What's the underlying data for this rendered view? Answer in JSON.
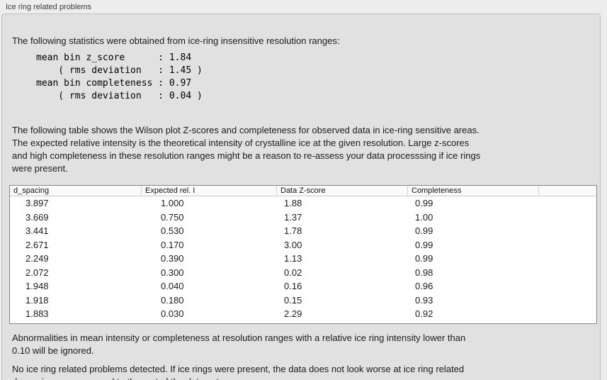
{
  "panel": {
    "title": "Ice ring related problems"
  },
  "intro": {
    "text": "The following statistics were obtained from ice-ring insensitive resolution ranges:"
  },
  "stats_block": {
    "text": "mean bin z_score      : 1.84\n    ( rms deviation   : 1.45 )\nmean bin completeness : 0.97\n    ( rms deviation   : 0.04 )"
  },
  "table_description": "The following table shows the Wilson plot Z-scores and completeness for observed data in ice-ring sensitive areas.\nThe expected relative intensity is the theoretical intensity of crystalline ice at the given resolution. Large z-scores\nand high completeness in these resolution ranges might be a reason to re-assess your data processsing if ice rings\nwere present.",
  "table": {
    "columns": [
      "d_spacing",
      "Expected rel. I",
      "Data Z-score",
      "Completeness",
      ""
    ],
    "rows": [
      [
        "3.897",
        "1.000",
        "1.88",
        "0.99"
      ],
      [
        "3.669",
        "0.750",
        "1.37",
        "1.00"
      ],
      [
        "3.441",
        "0.530",
        "1.78",
        "0.99"
      ],
      [
        "2.671",
        "0.170",
        "3.00",
        "0.99"
      ],
      [
        "2.249",
        "0.390",
        "1.13",
        "0.99"
      ],
      [
        "2.072",
        "0.300",
        "0.02",
        "0.98"
      ],
      [
        "1.948",
        "0.040",
        "0.16",
        "0.96"
      ],
      [
        "1.918",
        "0.180",
        "0.15",
        "0.93"
      ],
      [
        "1.883",
        "0.030",
        "2.29",
        "0.92"
      ]
    ]
  },
  "notes": {
    "ignore_note": "Abnormalities in mean intensity or completeness at resolution ranges with a relative ice ring intensity lower than\n0.10 will be ignored.",
    "conclusion": "No ice ring related problems detected. If ice rings were present, the data does not look worse at ice ring related\nd_spacings as compared to the rest of the data set."
  },
  "colors": {
    "bg": "#ededed",
    "box_bg": "#e1e1e1",
    "box_border": "#c3c3c3",
    "text": "#1b1b1b",
    "table_bg": "#ffffff",
    "table_border": "#868686",
    "header_bg": "#fafafa"
  }
}
